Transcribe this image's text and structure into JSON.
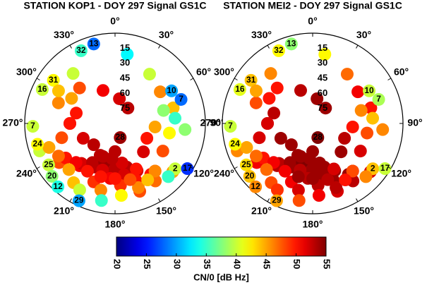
{
  "chart_data": [
    {
      "type": "polar-scatter",
      "title": "STATION KOP1 - DOY 297 Signal GS1C",
      "azticks": [
        {
          "value": 0,
          "label": "0°"
        },
        {
          "value": 30,
          "label": "30°"
        },
        {
          "value": 60,
          "label": "60°"
        },
        {
          "value": 90,
          "label": "90°"
        },
        {
          "value": 120,
          "label": "120°"
        },
        {
          "value": 150,
          "label": "150°"
        },
        {
          "value": 180,
          "label": "180°"
        },
        {
          "value": 210,
          "label": "210°"
        },
        {
          "value": 240,
          "label": "240°"
        },
        {
          "value": 270,
          "label": "270°"
        },
        {
          "value": 300,
          "label": "300°"
        },
        {
          "value": 330,
          "label": "330°"
        }
      ],
      "elticks": [
        15,
        30,
        45,
        60,
        75
      ],
      "tracks": [
        {
          "name": "13",
          "az": [
            345,
            10,
            35,
            55,
            75,
            95
          ],
          "el": [
            8,
            20,
            30,
            35,
            30,
            20
          ],
          "cn0": [
            28,
            33,
            40,
            46,
            44,
            38
          ]
        },
        {
          "name": "32",
          "az": [
            335,
            320,
            300,
            285,
            270,
            255
          ],
          "el": [
            10,
            25,
            40,
            50,
            45,
            35
          ],
          "cn0": [
            35,
            40,
            45,
            50,
            50,
            48
          ]
        },
        {
          "name": "31",
          "az": [
            305,
            290,
            270,
            245,
            225,
            205
          ],
          "el": [
            15,
            30,
            45,
            55,
            60,
            55
          ],
          "cn0": [
            42,
            46,
            50,
            52,
            53,
            53
          ]
        },
        {
          "name": "16",
          "az": [
            295,
            300,
            315,
            340,
            10,
            40
          ],
          "el": [
            10,
            25,
            40,
            55,
            65,
            70
          ],
          "cn0": [
            40,
            44,
            48,
            51,
            52,
            53
          ]
        },
        {
          "name": "10",
          "az": [
            60,
            75,
            95,
            115,
            135,
            160
          ],
          "el": [
            25,
            40,
            50,
            55,
            50,
            40
          ],
          "cn0": [
            30,
            38,
            45,
            50,
            52,
            51
          ]
        },
        {
          "name": "7",
          "az": [
            70,
            85,
            100,
            120,
            140,
            160
          ],
          "el": [
            20,
            30,
            35,
            35,
            28,
            18
          ],
          "cn0": [
            28,
            35,
            42,
            48,
            50,
            48
          ]
        },
        {
          "name": "28",
          "az": [
            160,
            180,
            200,
            220,
            235,
            250
          ],
          "el": [
            75,
            62,
            48,
            35,
            22,
            10
          ],
          "cn0": [
            54,
            53,
            52,
            51,
            48,
            40
          ]
        },
        {
          "name": "7",
          "az": [
            268,
            250,
            235,
            220,
            205,
            190
          ],
          "el": [
            8,
            20,
            30,
            38,
            42,
            40
          ],
          "cn0": [
            40,
            45,
            50,
            52,
            53,
            53
          ]
        },
        {
          "name": "24",
          "az": [
            255,
            240,
            225,
            210,
            195,
            180
          ],
          "el": [
            10,
            25,
            35,
            45,
            50,
            50
          ],
          "cn0": [
            42,
            47,
            51,
            53,
            54,
            54
          ]
        },
        {
          "name": "25",
          "az": [
            238,
            225,
            210,
            195,
            180,
            165
          ],
          "el": [
            12,
            25,
            35,
            42,
            45,
            45
          ],
          "cn0": [
            40,
            45,
            50,
            52,
            53,
            53
          ]
        },
        {
          "name": "20",
          "az": [
            230,
            215,
            200,
            185,
            170,
            155
          ],
          "el": [
            8,
            18,
            28,
            35,
            38,
            38
          ],
          "cn0": [
            38,
            44,
            49,
            51,
            52,
            52
          ]
        },
        {
          "name": "12",
          "az": [
            222,
            208,
            192,
            175,
            160,
            145
          ],
          "el": [
            5,
            15,
            22,
            28,
            30,
            28
          ],
          "cn0": [
            34,
            40,
            46,
            49,
            50,
            50
          ]
        },
        {
          "name": "29",
          "az": [
            205,
            190,
            175,
            160,
            145,
            130
          ],
          "el": [
            5,
            12,
            18,
            22,
            20,
            15
          ],
          "cn0": [
            30,
            35,
            42,
            46,
            47,
            45
          ]
        },
        {
          "name": "2",
          "az": [
            127,
            140,
            155,
            170,
            185,
            200
          ],
          "el": [
            15,
            28,
            40,
            50,
            55,
            55
          ],
          "cn0": [
            40,
            46,
            50,
            52,
            53,
            53
          ]
        },
        {
          "name": "17",
          "az": [
            122,
            135,
            150,
            165,
            180,
            195
          ],
          "el": [
            5,
            15,
            25,
            32,
            35,
            35
          ],
          "cn0": [
            26,
            35,
            44,
            48,
            50,
            50
          ]
        }
      ]
    },
    {
      "type": "polar-scatter",
      "title": "STATION MEI2 - DOY 297 Signal GS1C",
      "azticks": [
        {
          "value": 0,
          "label": "0°"
        },
        {
          "value": 30,
          "label": "30°"
        },
        {
          "value": 60,
          "label": "60°"
        },
        {
          "value": 90,
          "label": "90°"
        },
        {
          "value": 120,
          "label": "120°"
        },
        {
          "value": 150,
          "label": "150°"
        },
        {
          "value": 180,
          "label": "180°"
        },
        {
          "value": 210,
          "label": "210°"
        },
        {
          "value": 240,
          "label": "240°"
        },
        {
          "value": 270,
          "label": "270°"
        },
        {
          "value": 300,
          "label": "300°"
        },
        {
          "value": 330,
          "label": "330°"
        }
      ],
      "elticks": [
        15,
        30,
        45,
        60,
        75
      ],
      "tracks": [
        {
          "name": "13",
          "az": [
            345,
            10,
            35,
            55,
            75,
            95
          ],
          "el": [
            8,
            20,
            30,
            35,
            30,
            20
          ],
          "cn0": [
            38,
            42,
            47,
            51,
            50,
            46
          ]
        },
        {
          "name": "32",
          "az": [
            335,
            320,
            300,
            285,
            270,
            255
          ],
          "el": [
            10,
            25,
            40,
            50,
            45,
            35
          ],
          "cn0": [
            42,
            46,
            50,
            53,
            53,
            52
          ]
        },
        {
          "name": "31",
          "az": [
            305,
            290,
            270,
            245,
            225,
            205
          ],
          "el": [
            15,
            30,
            45,
            55,
            60,
            55
          ],
          "cn0": [
            44,
            48,
            52,
            54,
            54,
            54
          ]
        },
        {
          "name": "16",
          "az": [
            295,
            300,
            315,
            340,
            10,
            40
          ],
          "el": [
            10,
            25,
            40,
            55,
            65,
            70
          ],
          "cn0": [
            41,
            45,
            50,
            53,
            54,
            54
          ]
        },
        {
          "name": "10",
          "az": [
            60,
            75,
            95,
            115,
            135,
            160
          ],
          "el": [
            25,
            40,
            50,
            55,
            50,
            40
          ],
          "cn0": [
            40,
            46,
            50,
            53,
            54,
            54
          ]
        },
        {
          "name": "7",
          "az": [
            70,
            85,
            100,
            120,
            140,
            160
          ],
          "el": [
            20,
            30,
            35,
            35,
            28,
            18
          ],
          "cn0": [
            39,
            44,
            48,
            52,
            53,
            52
          ]
        },
        {
          "name": "28",
          "az": [
            160,
            180,
            200,
            220,
            235,
            250
          ],
          "el": [
            75,
            62,
            48,
            35,
            22,
            10
          ],
          "cn0": [
            55,
            54,
            54,
            53,
            51,
            46
          ]
        },
        {
          "name": "7",
          "az": [
            268,
            250,
            235,
            220,
            205,
            190
          ],
          "el": [
            8,
            20,
            30,
            38,
            42,
            40
          ],
          "cn0": [
            40,
            45,
            50,
            53,
            54,
            54
          ]
        },
        {
          "name": "24",
          "az": [
            255,
            240,
            225,
            210,
            195,
            180
          ],
          "el": [
            10,
            25,
            35,
            45,
            50,
            50
          ],
          "cn0": [
            42,
            47,
            51,
            54,
            55,
            55
          ]
        },
        {
          "name": "25",
          "az": [
            238,
            225,
            210,
            195,
            180,
            165
          ],
          "el": [
            12,
            25,
            35,
            42,
            45,
            45
          ],
          "cn0": [
            43,
            47,
            51,
            53,
            54,
            54
          ]
        },
        {
          "name": "20",
          "az": [
            230,
            215,
            200,
            185,
            170,
            155
          ],
          "el": [
            8,
            18,
            28,
            35,
            38,
            38
          ],
          "cn0": [
            44,
            48,
            51,
            53,
            54,
            54
          ]
        },
        {
          "name": "12",
          "az": [
            222,
            208,
            192,
            175,
            160,
            145
          ],
          "el": [
            5,
            15,
            22,
            28,
            30,
            28
          ],
          "cn0": [
            46,
            49,
            52,
            53,
            54,
            54
          ]
        },
        {
          "name": "29",
          "az": [
            205,
            190,
            175,
            160,
            145,
            130
          ],
          "el": [
            5,
            12,
            18,
            22,
            20,
            15
          ],
          "cn0": [
            45,
            48,
            51,
            53,
            53,
            52
          ]
        },
        {
          "name": "2",
          "az": [
            127,
            140,
            155,
            170,
            185,
            200
          ],
          "el": [
            15,
            28,
            40,
            50,
            55,
            55
          ],
          "cn0": [
            44,
            48,
            52,
            54,
            54,
            54
          ]
        },
        {
          "name": "17",
          "az": [
            122,
            135,
            150,
            165,
            180,
            195
          ],
          "el": [
            5,
            15,
            25,
            32,
            35,
            35
          ],
          "cn0": [
            40,
            46,
            50,
            53,
            54,
            54
          ]
        }
      ]
    }
  ],
  "colorbar": {
    "label": "CN/0 [dB Hz]",
    "colormap": "jet",
    "clim": [
      20,
      55
    ],
    "ticks": [
      20,
      25,
      30,
      35,
      40,
      45,
      50,
      55
    ]
  }
}
